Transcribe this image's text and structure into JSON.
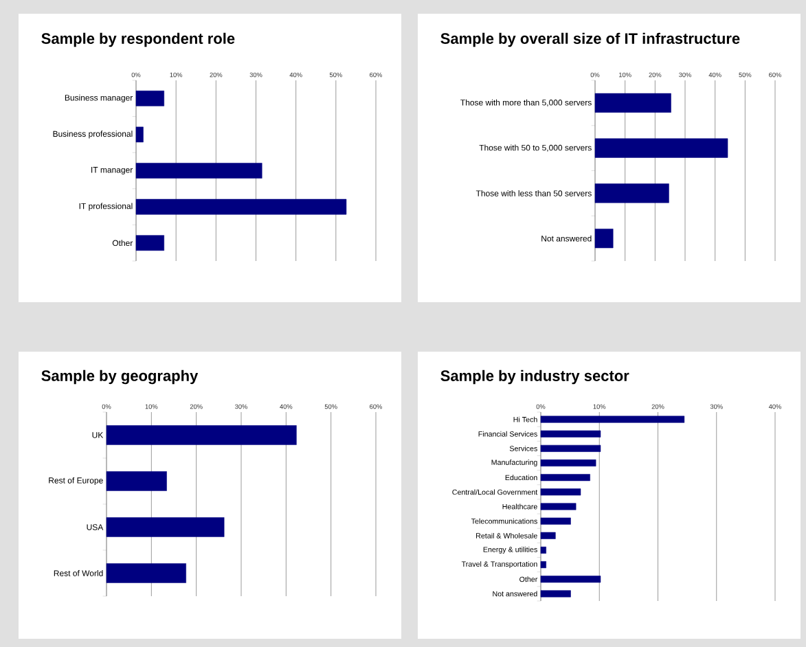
{
  "chart_data": [
    {
      "type": "bar",
      "orientation": "horizontal",
      "title": "Sample by respondent role",
      "categories": [
        "Business manager",
        "Business professional",
        "IT manager",
        "IT professional",
        "Other"
      ],
      "values": [
        7.0,
        1.8,
        31.5,
        52.6,
        7.0
      ],
      "color": "#000080",
      "xlim": [
        0,
        60
      ],
      "xticks": [
        {
          "value": 0,
          "label": "0%"
        },
        {
          "value": 10,
          "label": "10%"
        },
        {
          "value": 20,
          "label": "20%"
        },
        {
          "value": 30,
          "label": "30%"
        },
        {
          "value": 40,
          "label": "40%"
        },
        {
          "value": 50,
          "label": "50%"
        },
        {
          "value": 60,
          "label": "60%"
        }
      ],
      "grid": "x"
    },
    {
      "type": "bar",
      "orientation": "horizontal",
      "title": "Sample by overall size of IT infrastructure",
      "categories": [
        "Those with more than 5,000 servers",
        "Those with 50 to  5,000 servers",
        "Those with less than 50 servers",
        "Not answered"
      ],
      "values": [
        25.3,
        44.2,
        24.6,
        6.0
      ],
      "color": "#000080",
      "xlim": [
        0,
        60
      ],
      "xticks": [
        {
          "value": 0,
          "label": "0%"
        },
        {
          "value": 10,
          "label": "10%"
        },
        {
          "value": 20,
          "label": "20%"
        },
        {
          "value": 30,
          "label": "30%"
        },
        {
          "value": 40,
          "label": "40%"
        },
        {
          "value": 50,
          "label": "50%"
        },
        {
          "value": 60,
          "label": "60%"
        }
      ],
      "grid": "x"
    },
    {
      "type": "bar",
      "orientation": "horizontal",
      "title": "Sample by geography",
      "categories": [
        "UK",
        "Rest of Europe",
        "USA",
        "Rest of World"
      ],
      "values": [
        42.3,
        13.4,
        26.2,
        17.7
      ],
      "color": "#000080",
      "xlim": [
        0,
        60
      ],
      "xticks": [
        {
          "value": 0,
          "label": "0%"
        },
        {
          "value": 10,
          "label": "10%"
        },
        {
          "value": 20,
          "label": "20%"
        },
        {
          "value": 30,
          "label": "30%"
        },
        {
          "value": 40,
          "label": "40%"
        },
        {
          "value": 50,
          "label": "50%"
        },
        {
          "value": 60,
          "label": "60%"
        }
      ],
      "grid": "x"
    },
    {
      "type": "bar",
      "orientation": "horizontal",
      "title": "Sample by industry sector",
      "categories": [
        "Hi Tech",
        "Financial Services",
        "Services",
        "Manufacturing",
        "Education",
        "Central/Local Government",
        "Healthcare",
        "Telecommunications",
        "Retail & Wholesale",
        "Energy & utilities",
        "Travel & Transportation",
        "Other",
        "Not answered"
      ],
      "values": [
        24.5,
        10.2,
        10.2,
        9.4,
        8.4,
        6.8,
        6.0,
        5.1,
        2.5,
        0.9,
        0.9,
        10.2,
        5.1
      ],
      "color": "#000080",
      "xlim": [
        0,
        40
      ],
      "xticks": [
        {
          "value": 0,
          "label": "0%"
        },
        {
          "value": 10,
          "label": "10%"
        },
        {
          "value": 20,
          "label": "20%"
        },
        {
          "value": 30,
          "label": "30%"
        },
        {
          "value": 40,
          "label": "40%"
        }
      ],
      "grid": "x"
    }
  ]
}
